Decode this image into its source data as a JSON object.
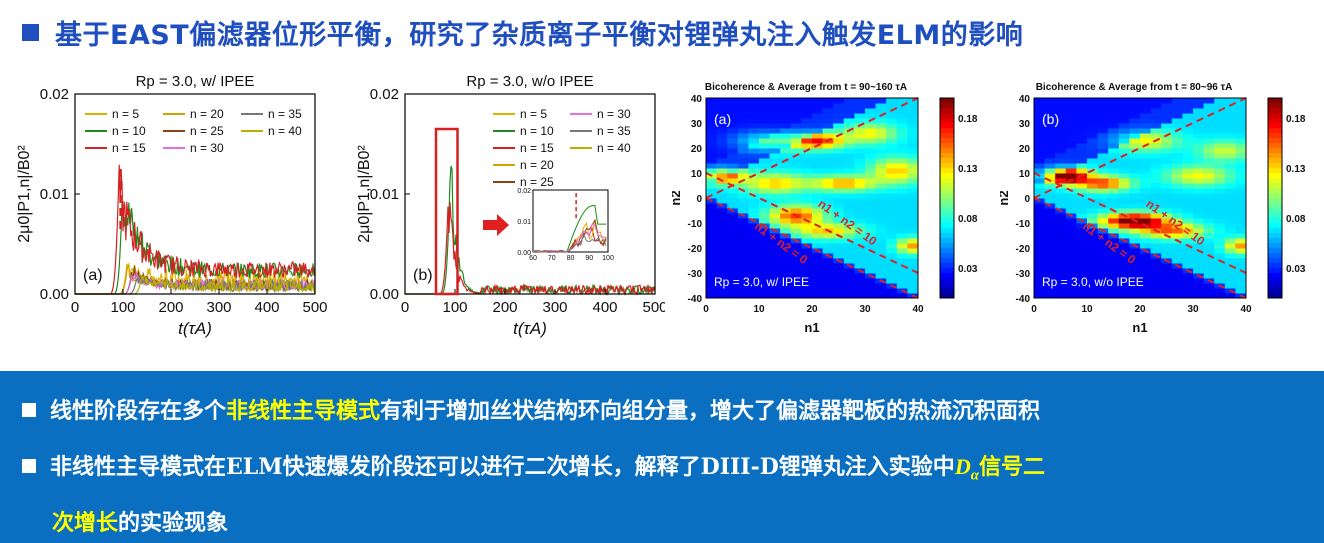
{
  "title": "基于EAST偏滤器位形平衡，研究了杂质离子平衡对锂弹丸注入触发ELM的影响",
  "colors": {
    "title": "#1f4fbf",
    "panel_bg": "#0a6fc0",
    "highlight": "#ffff00"
  },
  "chart_data": [
    {
      "type": "line",
      "title": "Rp = 3.0, w/ IPEE",
      "panel_label": "(a)",
      "xlabel": "t(τA)",
      "ylabel": "2μ0|P1,n|/B0²",
      "xlim": [
        0,
        500
      ],
      "ylim": [
        0,
        0.02
      ],
      "xticks": [
        "0",
        "100",
        "200",
        "300",
        "400",
        "500"
      ],
      "yticks": [
        "0.00",
        "0.01",
        "0.02"
      ],
      "legend": [
        "n = 5",
        "n = 10",
        "n = 15",
        "n = 20",
        "n = 25",
        "n = 30",
        "n = 35",
        "n = 40"
      ],
      "legend_position": "top",
      "series": [
        {
          "name": "n = 5",
          "color": "#e0b000",
          "peak_t": 110,
          "peak": 0.004
        },
        {
          "name": "n = 10",
          "color": "#1e8a1e",
          "peak_t": 100,
          "peak": 0.0125
        },
        {
          "name": "n = 15",
          "color": "#d42020",
          "peak_t": 92,
          "peak": 0.013
        },
        {
          "name": "n = 20",
          "color": "#d2a000",
          "peak_t": 110,
          "peak": 0.003
        },
        {
          "name": "n = 25",
          "color": "#8b4513",
          "peak_t": 120,
          "peak": 0.003
        },
        {
          "name": "n = 30",
          "color": "#e070e0",
          "peak_t": 120,
          "peak": 0.0025
        },
        {
          "name": "n = 35",
          "color": "#777777",
          "peak_t": 130,
          "peak": 0.002
        },
        {
          "name": "n = 40",
          "color": "#b8b000",
          "peak_t": 140,
          "peak": 0.002
        }
      ]
    },
    {
      "type": "line",
      "title": "Rp = 3.0, w/o IPEE",
      "panel_label": "(b)",
      "xlabel": "t(τA)",
      "ylabel": "2μ0|P1,n|/B0²",
      "xlim": [
        0,
        500
      ],
      "ylim": [
        0,
        0.02
      ],
      "xticks": [
        "0",
        "100",
        "200",
        "300",
        "400",
        "500"
      ],
      "yticks": [
        "0.00",
        "0.01",
        "0.02"
      ],
      "legend": [
        "n = 5",
        "n = 10",
        "n = 15",
        "n = 20",
        "n = 25",
        "n = 30",
        "n = 35",
        "n = 40"
      ],
      "legend_position": "top-right",
      "inset": {
        "xlim": [
          60,
          100
        ],
        "ylim": [
          0,
          0.02
        ],
        "xticks": [
          "60",
          "70",
          "80",
          "90",
          "100"
        ],
        "yticks": [
          "0.00",
          "0.01",
          "0.02"
        ]
      },
      "series": [
        {
          "name": "n = 10",
          "color": "#1e8a1e",
          "peak_t": 92,
          "peak": 0.0155
        },
        {
          "name": "n = 15",
          "color": "#d42020",
          "peak_t": 88,
          "peak": 0.012
        }
      ]
    },
    {
      "type": "heatmap",
      "title": "Bicoherence & Average from t = 90~160 τA",
      "panel_label": "(a)",
      "annotation": "Rp = 3.0, w/ IPEE",
      "xlabel": "n1",
      "ylabel": "n2",
      "xlim": [
        0,
        40
      ],
      "ylim": [
        -40,
        40
      ],
      "xticks": [
        "0",
        "10",
        "20",
        "30",
        "40"
      ],
      "yticks": [
        "40",
        "30",
        "20",
        "10",
        "0",
        "-10",
        "-20",
        "-30",
        "-40"
      ],
      "colorbar_ticks": [
        "0.18",
        "0.13",
        "0.08",
        "0.03"
      ],
      "lines": [
        "n1 + n2 = 10",
        "n1 + n2 = 0"
      ]
    },
    {
      "type": "heatmap",
      "title": "Bicoherence & Average from t = 80~96 τA",
      "panel_label": "(b)",
      "annotation": "Rp = 3.0, w/o IPEE",
      "xlabel": "n1",
      "ylabel": "n2",
      "xlim": [
        0,
        40
      ],
      "ylim": [
        -40,
        40
      ],
      "xticks": [
        "0",
        "10",
        "20",
        "30",
        "40"
      ],
      "yticks": [
        "40",
        "30",
        "20",
        "10",
        "0",
        "-10",
        "-20",
        "-30",
        "-40"
      ],
      "colorbar_ticks": [
        "0.18",
        "0.13",
        "0.08",
        "0.03"
      ],
      "lines": [
        "n1 + n2 = 10",
        "n1 + n2 = 0"
      ]
    }
  ],
  "bullets": {
    "b1": {
      "pre": "线性阶段存在多个",
      "hl": "非线性主导模式",
      "post": "有利于增加丝状结构环向组分量，增大了偏滤器靶板的热流沉积面积"
    },
    "b2": {
      "pre1": "非线性主导模式在",
      "serif1": "ELM",
      "pre2": "快速爆发阶段还可以进行二次增长，解释了",
      "serif2": "DIII-D",
      "pre3": "锂弹丸注入实验中",
      "d_sym": "D",
      "d_sub": "α",
      "hl": "信号二"
    },
    "b3": {
      "hl": "次增长",
      "post": "的实验现象"
    }
  }
}
